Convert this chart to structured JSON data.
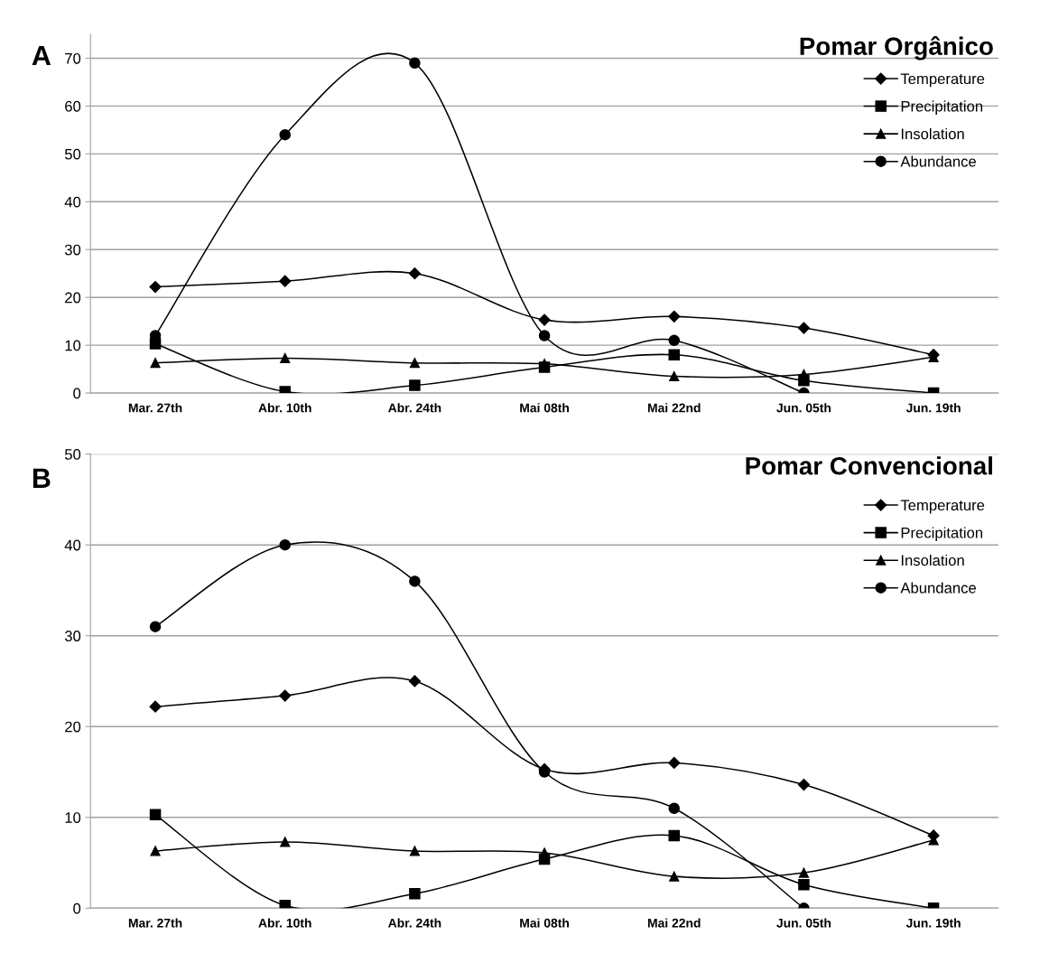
{
  "chart_data": [
    {
      "type": "line",
      "title": "Pomar Orgânico",
      "annotations": [
        "A"
      ],
      "categories": [
        "Mar. 27th",
        "Abr. 10th",
        "Abr. 24th",
        "Mai 08th",
        "Mai 22nd",
        "Jun. 05th",
        "Jun. 19th"
      ],
      "ylim": [
        0,
        75
      ],
      "yticks": [
        0,
        10,
        20,
        30,
        40,
        50,
        60,
        70
      ],
      "grid": "y",
      "legend": "top right",
      "series": [
        {
          "name": "Temperature",
          "color": "#000000",
          "marker": "diamond",
          "values": [
            22.2,
            23.4,
            25,
            15.3,
            16,
            13.6,
            8
          ]
        },
        {
          "name": "Precipitation",
          "color": "#000000",
          "marker": "square",
          "values": [
            10.3,
            0.3,
            1.6,
            5.4,
            8,
            2.6,
            0
          ]
        },
        {
          "name": "Insolation",
          "color": "#000000",
          "marker": "triangle",
          "values": [
            6.3,
            7.3,
            6.3,
            6.1,
            3.5,
            3.9,
            7.5
          ]
        },
        {
          "name": "Abundance",
          "color": "#000000",
          "marker": "circle",
          "values": [
            12,
            54,
            69,
            12,
            11,
            0,
            null
          ]
        }
      ]
    },
    {
      "type": "line",
      "title": "Pomar Convencional",
      "annotations": [
        "B"
      ],
      "categories": [
        "Mar. 27th",
        "Abr. 10th",
        "Abr. 24th",
        "Mai 08th",
        "Mai 22nd",
        "Jun. 05th",
        "Jun. 19th"
      ],
      "ylim": [
        0,
        50
      ],
      "yticks": [
        0,
        10,
        20,
        30,
        40,
        50
      ],
      "grid": "y",
      "legend": "top right",
      "series": [
        {
          "name": "Temperature",
          "color": "#000000",
          "marker": "diamond",
          "values": [
            22.2,
            23.4,
            25,
            15.3,
            16,
            13.6,
            8
          ]
        },
        {
          "name": "Precipitation",
          "color": "#000000",
          "marker": "square",
          "values": [
            10.3,
            0.3,
            1.6,
            5.4,
            8,
            2.6,
            0
          ]
        },
        {
          "name": "Insolation",
          "color": "#000000",
          "marker": "triangle",
          "values": [
            6.3,
            7.3,
            6.3,
            6.1,
            3.5,
            3.9,
            7.5
          ]
        },
        {
          "name": "Abundance",
          "color": "#000000",
          "marker": "circle",
          "values": [
            31,
            40,
            36,
            15,
            11,
            0,
            null
          ]
        }
      ]
    }
  ]
}
